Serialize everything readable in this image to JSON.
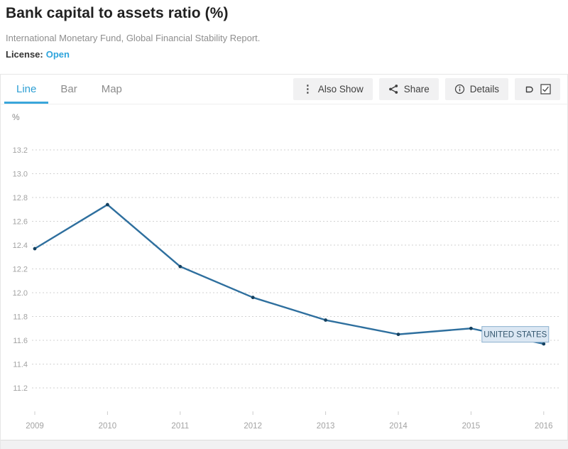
{
  "header": {
    "title": "Bank capital to assets ratio (%)",
    "source": "International Monetary Fund, Global Financial Stability Report.",
    "license_label": "License:",
    "license_value": "Open"
  },
  "tabs": [
    {
      "label": "Line",
      "active": true
    },
    {
      "label": "Bar",
      "active": false
    },
    {
      "label": "Map",
      "active": false
    }
  ],
  "toolbar": {
    "also_show_label": "Also Show",
    "share_label": "Share",
    "details_label": "Details",
    "label_toggle_checked": true,
    "icons": [
      "kebab-icon",
      "share-icon",
      "info-icon",
      "tooltip-label-icon",
      "checkbox-checked-icon"
    ]
  },
  "chart_data": {
    "type": "line",
    "title": "Bank capital to assets ratio (%)",
    "unit_label": "%",
    "x": [
      2009,
      2010,
      2011,
      2012,
      2013,
      2014,
      2015,
      2016
    ],
    "series": [
      {
        "name": "UNITED STATES",
        "values": [
          12.37,
          12.74,
          12.22,
          11.96,
          11.77,
          11.65,
          11.7,
          11.57
        ]
      }
    ],
    "yticks": [
      11.2,
      11.4,
      11.6,
      11.8,
      12.0,
      12.2,
      12.4,
      12.6,
      12.8,
      13.0,
      13.2
    ],
    "ylim": [
      11.0,
      13.4
    ],
    "grid": "horizontal-dashed",
    "legend_position": "inline-annotation",
    "annotation": {
      "label": "UNITED STATES",
      "anchor_year": 2016,
      "y": 11.65
    },
    "line_color": "#2e6f9e",
    "marker_color": "#14405f"
  }
}
